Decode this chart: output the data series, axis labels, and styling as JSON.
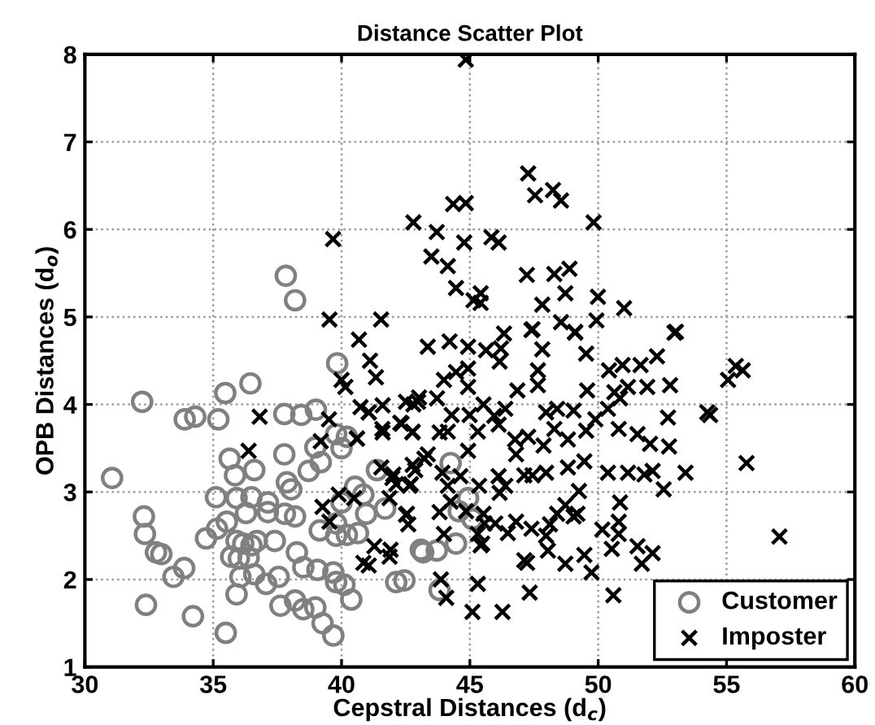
{
  "chart_data": {
    "type": "scatter",
    "title": "Distance Scatter Plot",
    "xlabel": "Cepstral Distances (d$_{c}$)",
    "ylabel": "OPB Distances (d$_{o}$)",
    "xlim": [
      30,
      60
    ],
    "ylim": [
      1,
      8
    ],
    "xticks": [
      30,
      35,
      40,
      45,
      50,
      55,
      60
    ],
    "yticks": [
      1,
      2,
      3,
      4,
      5,
      6,
      7,
      8
    ],
    "grid": true,
    "legend": "bottom right",
    "series": [
      {
        "name": "Customer",
        "color": "#808080",
        "marker": "circle",
        "x": [
          37.83,
          38.19,
          32.23,
          31.06,
          32.3,
          32.34,
          32.77,
          32.98,
          32.38,
          33.45,
          33.87,
          34.21,
          33.89,
          34.3,
          35.2,
          35.47,
          36.45,
          35.49,
          37.77,
          37.77,
          39.83,
          38.43,
          39.0,
          38.98,
          39.19,
          38.72,
          37.87,
          38.04,
          35.64,
          35.85,
          36.6,
          35.11,
          35.91,
          36.49,
          37.13,
          37.13,
          37.79,
          38.19,
          36.28,
          34.72,
          35.15,
          35.53,
          35.91,
          36.17,
          36.49,
          36.7,
          37.4,
          35.7,
          36.0,
          36.38,
          36.06,
          35.91,
          36.6,
          37.06,
          37.55,
          38.26,
          38.51,
          37.62,
          38.19,
          38.51,
          38.98,
          39.26,
          39.68,
          39.06,
          39.68,
          39.79,
          40.11,
          40.38,
          39.15,
          39.79,
          39.79,
          40.21,
          40.64,
          40.0,
          40.53,
          40.85,
          40.0,
          40.21,
          39.79,
          40.96,
          41.38,
          41.7,
          42.13,
          42.45,
          43.09,
          44.25,
          43.18,
          43.71,
          44.46,
          43.82,
          44.93,
          45.1,
          44.57
        ],
        "values": [
          5.47,
          5.19,
          4.03,
          3.16,
          2.72,
          2.52,
          2.31,
          2.29,
          1.71,
          2.03,
          2.13,
          1.58,
          3.83,
          3.86,
          3.83,
          4.13,
          4.24,
          1.39,
          3.89,
          3.43,
          4.47,
          3.88,
          3.94,
          3.51,
          3.34,
          3.24,
          3.11,
          3.03,
          3.38,
          3.19,
          3.25,
          2.94,
          2.93,
          2.94,
          2.88,
          2.77,
          2.75,
          2.72,
          2.76,
          2.47,
          2.58,
          2.66,
          2.44,
          2.41,
          2.39,
          2.44,
          2.44,
          2.26,
          2.24,
          2.25,
          2.03,
          1.83,
          2.06,
          1.95,
          2.03,
          2.31,
          2.14,
          1.7,
          1.76,
          1.66,
          1.68,
          1.5,
          1.36,
          2.11,
          2.08,
          1.97,
          1.94,
          1.77,
          2.56,
          2.64,
          2.5,
          2.51,
          2.53,
          2.88,
          3.06,
          2.97,
          3.5,
          3.63,
          3.66,
          2.75,
          3.25,
          2.81,
          1.97,
          1.99,
          2.34,
          3.33,
          2.31,
          2.33,
          2.41,
          1.88,
          2.93,
          2.69,
          2.78
        ]
      },
      {
        "name": "Imposter",
        "color": "#000000",
        "marker": "cross",
        "x": [
          44.84,
          47.27,
          47.54,
          48.24,
          48.55,
          44.35,
          44.84,
          42.8,
          43.71,
          44.78,
          45.84,
          46.12,
          49.82,
          39.67,
          43.5,
          44.14,
          44.46,
          45.14,
          45.42,
          45.42,
          47.22,
          48.29,
          48.88,
          48.72,
          47.82,
          49.99,
          51.01,
          39.53,
          41.54,
          48.55,
          49.93,
          53.03,
          47.44,
          49.1,
          40.68,
          46.33,
          43.36,
          44.21,
          44.93,
          45.63,
          46.21,
          47.4,
          49.1,
          47.82,
          49.53,
          52.97,
          41.11,
          41.34,
          40.0,
          40.15,
          43.99,
          44.46,
          44.93,
          44.93,
          46.16,
          46.85,
          47.65,
          47.65,
          49.57,
          50.42,
          50.95,
          51.65,
          52.29,
          51.91,
          51.16,
          50.63,
          52.8,
          55.06,
          55.36,
          55.63,
          40.74,
          41.06,
          41.6,
          42.51,
          43.02,
          43.72,
          42.8,
          44.29,
          44.99,
          45.53,
          45.95,
          46.38,
          47.97,
          48.4,
          49.04,
          49.89,
          50.38,
          50.85,
          52.72,
          54.25,
          54.36,
          40.6,
          41.59,
          42.29,
          42.76,
          43.36,
          43.82,
          44.14,
          44.93,
          45.31,
          46.12,
          46.76,
          47.27,
          47.87,
          48.29,
          48.82,
          49.53,
          50.8,
          51.53,
          52.02,
          52.76,
          55.78,
          41.55,
          42.02,
          42.65,
          42.87,
          43.23,
          43.93,
          44.14,
          44.63,
          45.36,
          46.12,
          46.38,
          46.8,
          47.12,
          47.44,
          47.97,
          48.82,
          49.46,
          50.38,
          51.16,
          51.8,
          52.12,
          53.4,
          52.55,
          40.49,
          41.87,
          42.51,
          42.6,
          43.82,
          44.25,
          44.85,
          45.53,
          46.16,
          49.25,
          50.85,
          45.57,
          45.99,
          46.8,
          47.4,
          48.12,
          48.4,
          48.72,
          49.04,
          49.19,
          50.16,
          50.8,
          50.8,
          39.53,
          43.99,
          45.31,
          46.48,
          47.97,
          45.48,
          41.28,
          41.91,
          41.87,
          41.06,
          40.85,
          45.42,
          48.04,
          48.72,
          49.46,
          49.74,
          50.53,
          51.53,
          51.7,
          52.12,
          47.23,
          57.06,
          43.87,
          44.08,
          45.31,
          45.1,
          46.27,
          47.33,
          50.59,
          47.12,
          36.81,
          36.38,
          39.51,
          39.19,
          40.6,
          41.06,
          41.6,
          42.34,
          42.77,
          42.98,
          41.98,
          42.13,
          42.7,
          42.77,
          39.89,
          39.26,
          42.55
        ],
        "values": [
          7.94,
          6.64,
          6.39,
          6.45,
          6.33,
          6.29,
          6.3,
          6.08,
          5.97,
          5.85,
          5.91,
          5.85,
          6.08,
          5.89,
          5.69,
          5.58,
          5.33,
          5.19,
          5.27,
          5.16,
          5.48,
          5.49,
          5.55,
          5.27,
          5.14,
          5.23,
          5.1,
          4.97,
          4.97,
          4.94,
          4.96,
          4.83,
          4.86,
          4.83,
          4.74,
          4.81,
          4.66,
          4.72,
          4.66,
          4.62,
          4.64,
          4.85,
          4.82,
          4.63,
          4.58,
          4.82,
          4.5,
          4.31,
          4.28,
          4.2,
          4.28,
          4.37,
          4.2,
          4.41,
          4.49,
          4.16,
          4.39,
          4.22,
          4.16,
          4.39,
          4.45,
          4.45,
          4.55,
          4.2,
          4.2,
          4.14,
          4.22,
          4.28,
          4.44,
          4.39,
          3.97,
          3.91,
          3.99,
          4.03,
          4.08,
          4.07,
          4.0,
          3.88,
          3.88,
          4.0,
          3.87,
          3.95,
          3.91,
          3.95,
          3.93,
          3.83,
          3.95,
          4.07,
          3.85,
          3.91,
          3.88,
          3.61,
          3.72,
          3.79,
          3.68,
          3.43,
          3.68,
          3.69,
          3.47,
          3.69,
          3.77,
          3.6,
          3.63,
          3.53,
          3.72,
          3.6,
          3.7,
          3.72,
          3.66,
          3.55,
          3.52,
          3.33,
          3.28,
          3.2,
          3.07,
          3.25,
          3.38,
          3.22,
          3.07,
          3.18,
          3.07,
          3.18,
          3.07,
          3.43,
          3.19,
          3.19,
          3.22,
          3.28,
          3.35,
          3.22,
          3.22,
          3.2,
          3.24,
          3.22,
          3.03,
          2.93,
          2.93,
          2.74,
          2.63,
          2.77,
          2.89,
          2.78,
          2.75,
          2.99,
          3.01,
          2.88,
          2.64,
          2.64,
          2.66,
          2.58,
          2.63,
          2.75,
          2.85,
          2.72,
          2.75,
          2.57,
          2.66,
          2.52,
          2.66,
          2.52,
          2.52,
          2.53,
          2.5,
          2.41,
          2.38,
          2.34,
          2.26,
          2.16,
          2.19,
          2.39,
          2.33,
          2.18,
          2.28,
          2.08,
          2.35,
          2.38,
          2.18,
          2.3,
          2.19,
          2.49,
          2.0,
          1.79,
          1.95,
          1.63,
          1.63,
          1.85,
          1.82,
          2.22,
          3.86,
          3.47,
          3.83,
          3.58,
          3.61,
          3.91,
          3.68,
          3.78,
          3.69,
          4.03,
          3.16,
          3.09,
          3.09,
          3.31,
          2.97,
          2.83,
          2.75
        ]
      }
    ]
  }
}
